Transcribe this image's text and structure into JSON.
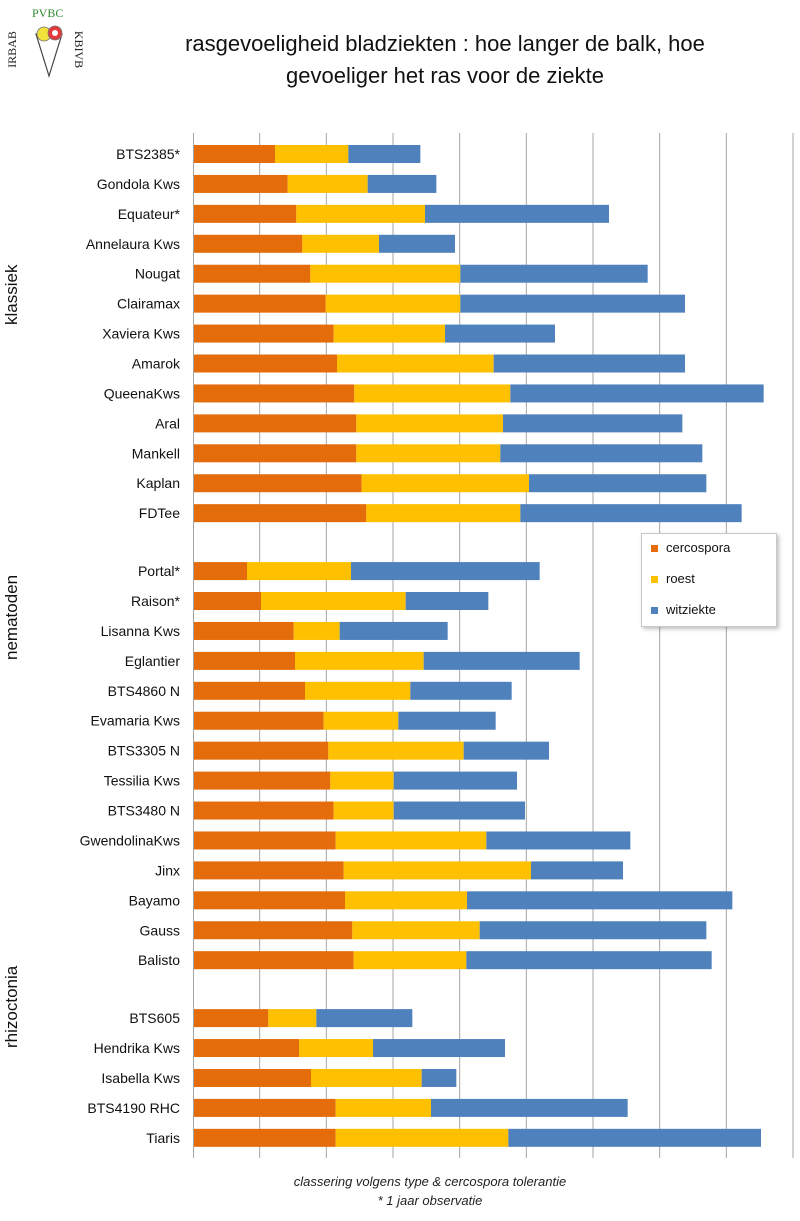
{
  "title_line1": "rasgevoeligheid bladziekten : hoe langer de balk, hoe",
  "title_line2": "gevoeliger het ras voor de ziekte",
  "logo": {
    "top": "PVBC",
    "left": "IRBAB",
    "right": "KBIVB"
  },
  "footnote_line1": "classering volgens type & cercospora tolerantie",
  "footnote_line2": "* 1 jaar observatie",
  "colors": {
    "cercospora": "#e46c0a",
    "roest": "#ffc000",
    "witziekte": "#4f81bd",
    "grid": "#a6a6a6"
  },
  "chart_data": {
    "type": "bar",
    "orientation": "horizontal",
    "stacked": true,
    "title": "rasgevoeligheid bladziekten : hoe langer de balk, hoe gevoeliger het ras voor de ziekte",
    "xlabel": "",
    "ylabel": "",
    "xlim": [
      0,
      9
    ],
    "grid": true,
    "legend_position": "right",
    "groups": [
      {
        "name": "klassiek",
        "categories": [
          "BTS2385*",
          "Gondola Kws",
          "Equateur*",
          "Annelaura Kws",
          "Nougat",
          "Clairamax",
          "Xaviera Kws",
          "Amarok",
          "QueenaKws",
          "Aral",
          "Mankell",
          "Kaplan",
          "FDTee"
        ]
      },
      {
        "name": "nematoden",
        "categories": [
          "Portal*",
          "Raison*",
          "Lisanna Kws",
          "Eglantier",
          "BTS4860 N",
          "Evamaria Kws",
          "BTS3305 N",
          "Tessilia Kws",
          "BTS3480 N",
          "GwendolinaKws",
          "Jinx",
          "Bayamo",
          "Gauss",
          "Balisto"
        ]
      },
      {
        "name": "rhizoctonia",
        "categories": [
          "BTS605",
          "Hendrika Kws",
          "Isabella Kws",
          "BTS4190 RHC",
          "Tiaris"
        ]
      }
    ],
    "series": [
      {
        "name": "cercospora",
        "values": [
          1.23,
          1.42,
          1.55,
          1.64,
          1.76,
          1.99,
          2.11,
          2.16,
          2.42,
          2.45,
          2.45,
          2.53,
          2.6,
          0.81,
          1.02,
          1.51,
          1.53,
          1.68,
          1.96,
          2.03,
          2.06,
          2.11,
          2.14,
          2.26,
          2.28,
          2.39,
          2.41,
          1.13,
          1.59,
          1.77,
          2.14,
          2.14
        ]
      },
      {
        "name": "roest",
        "values": [
          1.1,
          1.2,
          1.93,
          1.15,
          2.25,
          2.02,
          1.67,
          2.35,
          2.34,
          2.2,
          2.16,
          2.51,
          2.31,
          1.56,
          2.17,
          0.69,
          1.93,
          1.58,
          1.12,
          2.03,
          0.95,
          0.9,
          2.26,
          2.81,
          1.83,
          1.91,
          1.69,
          0.72,
          1.11,
          1.66,
          1.43,
          2.59
        ]
      },
      {
        "name": "witziekte",
        "values": [
          1.08,
          1.03,
          2.76,
          1.14,
          2.81,
          3.37,
          1.65,
          2.87,
          3.8,
          2.69,
          3.03,
          2.66,
          3.32,
          2.83,
          1.24,
          1.62,
          2.34,
          1.52,
          1.46,
          1.28,
          1.85,
          1.97,
          2.16,
          1.38,
          3.98,
          3.4,
          3.68,
          1.44,
          1.98,
          0.52,
          2.95,
          3.79
        ]
      }
    ]
  }
}
